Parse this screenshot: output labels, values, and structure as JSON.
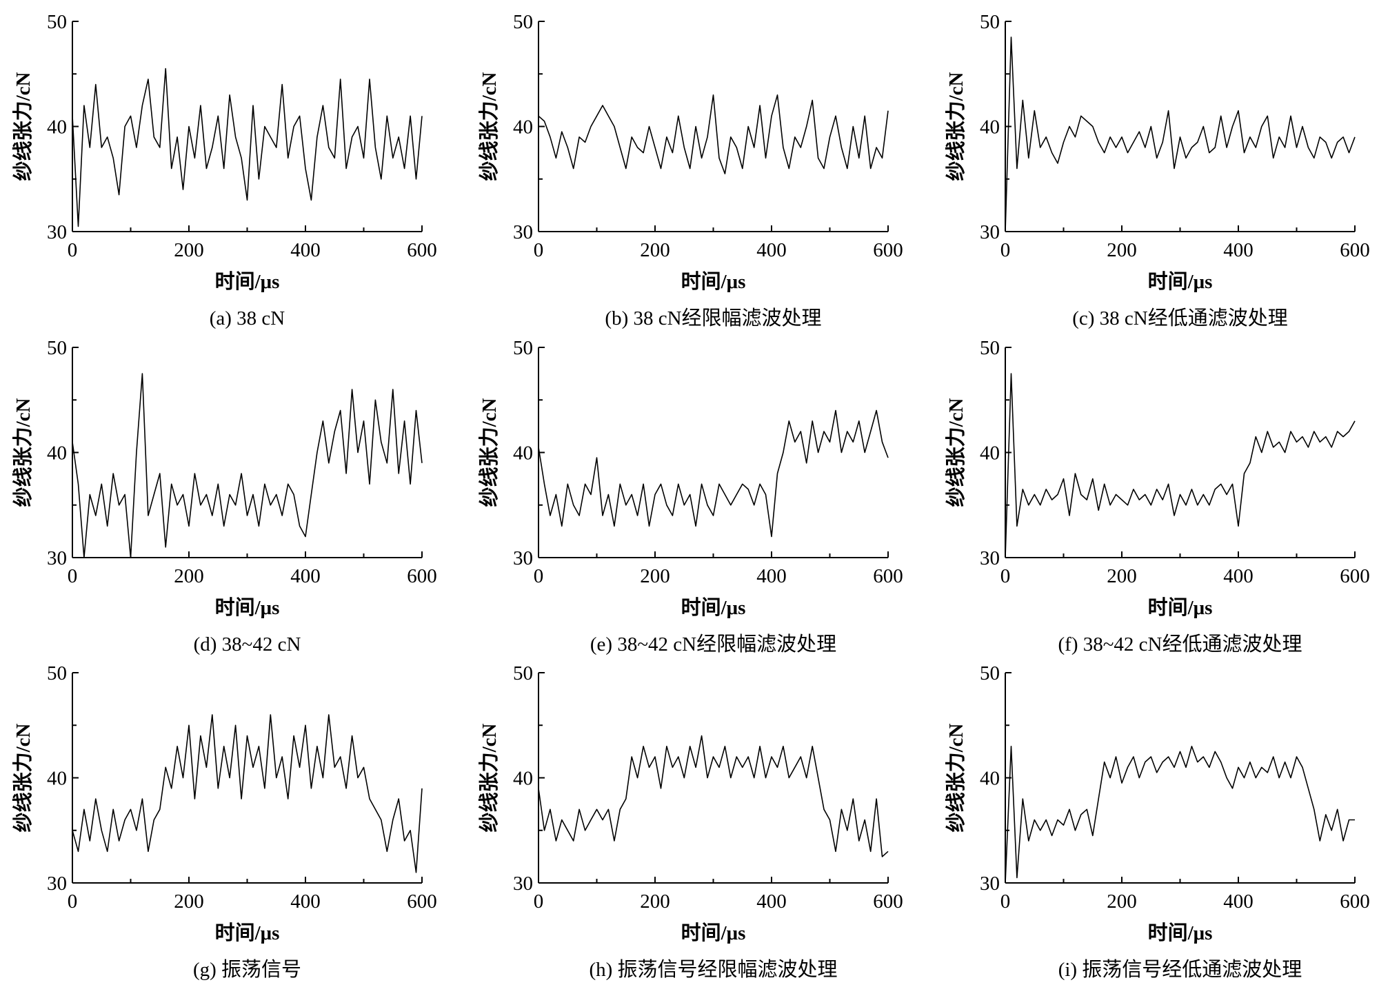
{
  "chart_data": [
    {
      "id": "a",
      "type": "line",
      "caption": "(a)  38 cN",
      "xlabel": "时间/μs",
      "ylabel": "纱线张力/cN",
      "xlim": [
        0,
        600
      ],
      "ylim": [
        30,
        50
      ],
      "xticks": [
        0,
        200,
        400,
        600
      ],
      "yticks": [
        30,
        40,
        50
      ],
      "grid": false,
      "values": [
        41,
        30.5,
        42,
        38,
        44,
        38,
        39,
        37,
        33.5,
        40,
        41,
        38,
        42,
        44.5,
        39,
        38,
        45.5,
        36,
        39,
        34,
        40,
        37,
        42,
        36,
        38,
        41,
        36,
        43,
        39,
        37,
        33,
        42,
        35,
        40,
        39,
        38,
        44,
        37,
        40,
        41,
        36,
        33,
        39,
        42,
        38,
        37,
        44.5,
        36,
        39,
        40,
        37,
        44.5,
        38,
        35,
        41,
        37,
        39,
        36,
        41,
        35,
        41
      ]
    },
    {
      "id": "b",
      "type": "line",
      "caption": "(b)  38 cN经限幅滤波处理",
      "xlabel": "时间/μs",
      "ylabel": "纱线张力/cN",
      "xlim": [
        0,
        600
      ],
      "ylim": [
        30,
        50
      ],
      "xticks": [
        0,
        200,
        400,
        600
      ],
      "yticks": [
        30,
        40,
        50
      ],
      "grid": false,
      "values": [
        41,
        40.5,
        39,
        37,
        39.5,
        38,
        36,
        39,
        38.5,
        40,
        41,
        42,
        41,
        40,
        38,
        36,
        39,
        38,
        37.5,
        40,
        38,
        36,
        39,
        37.5,
        41,
        38,
        36,
        40,
        37,
        39,
        43,
        37,
        35.5,
        39,
        38,
        36,
        40,
        38,
        42,
        37,
        41,
        43,
        38,
        36,
        39,
        38,
        40,
        42.5,
        37,
        36,
        39,
        41,
        38,
        36,
        40,
        37,
        41,
        36,
        38,
        37,
        41.5
      ]
    },
    {
      "id": "c",
      "type": "line",
      "caption": "(c)  38 cN经低通滤波处理",
      "xlabel": "时间/μs",
      "ylabel": "纱线张力/cN",
      "xlim": [
        0,
        600
      ],
      "ylim": [
        30,
        50
      ],
      "xticks": [
        0,
        200,
        400,
        600
      ],
      "yticks": [
        30,
        40,
        50
      ],
      "grid": false,
      "values": [
        30,
        48.5,
        36,
        42.5,
        37,
        41.5,
        38,
        39,
        37.5,
        36.5,
        38.5,
        40,
        39,
        41,
        40.5,
        40,
        38.5,
        37.5,
        39,
        38,
        39,
        37.5,
        38.5,
        39.5,
        38,
        40,
        37,
        38.5,
        41.5,
        36,
        39,
        37,
        38,
        38.5,
        40,
        37.5,
        38,
        41,
        38,
        40,
        41.5,
        37.5,
        39,
        38,
        40,
        41,
        37,
        39,
        38,
        41,
        38,
        40,
        38,
        37,
        39,
        38.5,
        37,
        38.5,
        39,
        37.5,
        39
      ]
    },
    {
      "id": "d",
      "type": "line",
      "caption": "(d)  38~42 cN",
      "xlabel": "时间/μs",
      "ylabel": "纱线张力/cN",
      "xlim": [
        0,
        600
      ],
      "ylim": [
        30,
        50
      ],
      "xticks": [
        0,
        200,
        400,
        600
      ],
      "yticks": [
        30,
        40,
        50
      ],
      "grid": false,
      "values": [
        41,
        37,
        30,
        36,
        34,
        37,
        33,
        38,
        35,
        36,
        30,
        40,
        47.5,
        34,
        36,
        38,
        31,
        37,
        35,
        36,
        33,
        38,
        35,
        36,
        34,
        37,
        33,
        36,
        35,
        38,
        34,
        36,
        33,
        37,
        35,
        36,
        34,
        37,
        36,
        33,
        32,
        36,
        40,
        43,
        39,
        42,
        44,
        38,
        46,
        40,
        43,
        37,
        45,
        41,
        39,
        46,
        38,
        43,
        37,
        44,
        39
      ]
    },
    {
      "id": "e",
      "type": "line",
      "caption": "(e)  38~42 cN经限幅滤波处理",
      "xlabel": "时间/μs",
      "ylabel": "纱线张力/cN",
      "xlim": [
        0,
        600
      ],
      "ylim": [
        30,
        50
      ],
      "xticks": [
        0,
        200,
        400,
        600
      ],
      "yticks": [
        30,
        40,
        50
      ],
      "grid": false,
      "values": [
        40.5,
        37,
        34,
        36,
        33,
        37,
        35,
        34,
        37,
        36,
        39.5,
        34,
        36,
        33,
        37,
        35,
        36,
        34,
        37,
        33,
        36,
        37,
        35,
        34,
        37,
        35,
        36,
        33,
        37,
        35,
        34,
        37,
        36,
        35,
        36,
        37,
        36.5,
        35,
        37,
        36,
        32,
        38,
        40,
        43,
        41,
        42,
        39,
        43,
        40,
        42,
        41,
        44,
        40,
        42,
        41,
        43,
        40,
        42,
        44,
        41,
        39.5
      ]
    },
    {
      "id": "f",
      "type": "line",
      "caption": "(f)  38~42 cN经低通滤波处理",
      "xlabel": "时间/μs",
      "ylabel": "纱线张力/cN",
      "xlim": [
        0,
        600
      ],
      "ylim": [
        30,
        50
      ],
      "xticks": [
        0,
        200,
        400,
        600
      ],
      "yticks": [
        30,
        40,
        50
      ],
      "grid": false,
      "values": [
        30,
        47.5,
        33,
        36.5,
        35,
        36,
        35,
        36.5,
        35.5,
        36,
        37.5,
        34,
        38,
        36,
        35.5,
        37.5,
        34.5,
        37,
        35,
        36,
        35.5,
        35,
        36.5,
        35.5,
        36,
        35,
        36.5,
        35.5,
        37,
        34,
        36,
        35,
        36.5,
        35,
        36,
        35,
        36.5,
        37,
        36,
        37,
        33,
        38,
        39,
        41.5,
        40,
        42,
        40.5,
        41,
        40,
        42,
        41,
        41.5,
        40.5,
        42,
        41,
        41.5,
        40.5,
        42,
        41.5,
        42,
        43
      ]
    },
    {
      "id": "g",
      "type": "line",
      "caption": "(g)  振荡信号",
      "xlabel": "时间/μs",
      "ylabel": "纱线张力/cN",
      "xlim": [
        0,
        600
      ],
      "ylim": [
        30,
        50
      ],
      "xticks": [
        0,
        200,
        400,
        600
      ],
      "yticks": [
        30,
        40,
        50
      ],
      "grid": false,
      "values": [
        35,
        33,
        37,
        34,
        38,
        35,
        33,
        37,
        34,
        36,
        37,
        35,
        38,
        33,
        36,
        37,
        41,
        39,
        43,
        40,
        45,
        38,
        44,
        41,
        46,
        39,
        43,
        40,
        45,
        38,
        44,
        41,
        43,
        39,
        46,
        40,
        42,
        38,
        44,
        41,
        45,
        39,
        43,
        40,
        46,
        41,
        42,
        39,
        44,
        40,
        41,
        38,
        37,
        36,
        33,
        36,
        38,
        34,
        35,
        31,
        39
      ]
    },
    {
      "id": "h",
      "type": "line",
      "caption": "(h)  振荡信号经限幅滤波处理",
      "xlabel": "时间/μs",
      "ylabel": "纱线张力/cN",
      "xlim": [
        0,
        600
      ],
      "ylim": [
        30,
        50
      ],
      "xticks": [
        0,
        200,
        400,
        600
      ],
      "yticks": [
        30,
        40,
        50
      ],
      "grid": false,
      "values": [
        39,
        35,
        37,
        34,
        36,
        35,
        34,
        37,
        35,
        36,
        37,
        36,
        37,
        34,
        37,
        38,
        42,
        40,
        43,
        41,
        42,
        39,
        43,
        41,
        42,
        40,
        43,
        41,
        44,
        40,
        42,
        41,
        43,
        40,
        42,
        41,
        42,
        40,
        43,
        40,
        42,
        41,
        43,
        40,
        41,
        42,
        40,
        43,
        40,
        37,
        36,
        33,
        37,
        35,
        38,
        34,
        36,
        33,
        38,
        32.5,
        33
      ]
    },
    {
      "id": "i",
      "type": "line",
      "caption": "(i)  振荡信号经低通滤波处理",
      "xlabel": "时间/μs",
      "ylabel": "纱线张力/cN",
      "xlim": [
        0,
        600
      ],
      "ylim": [
        30,
        50
      ],
      "xticks": [
        0,
        200,
        400,
        600
      ],
      "yticks": [
        30,
        40,
        50
      ],
      "grid": false,
      "values": [
        30,
        43,
        30.5,
        38,
        34,
        36,
        35,
        36,
        34.5,
        36,
        35.5,
        37,
        35,
        36.5,
        37,
        34.5,
        38,
        41.5,
        40,
        42,
        39.5,
        41,
        42,
        40,
        41.5,
        42,
        40.5,
        41.5,
        42,
        41,
        42.5,
        41,
        43,
        41.5,
        42,
        41,
        42.5,
        41.5,
        40,
        39,
        41,
        40,
        41.5,
        40,
        41,
        40.5,
        42,
        40,
        41.5,
        40,
        42,
        41,
        39,
        37,
        34,
        36.5,
        35,
        37,
        34,
        36,
        36
      ]
    }
  ]
}
